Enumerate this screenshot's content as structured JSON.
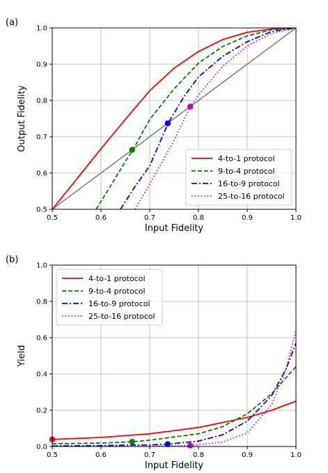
{
  "chart_data": [
    {
      "panel_label": "(a)",
      "type": "line",
      "xlabel": "Input Fidelity",
      "ylabel": "Output Fidelity",
      "xlim": [
        0.5,
        1.0
      ],
      "ylim": [
        0.5,
        1.0
      ],
      "xticks": [
        "0.5",
        "0.6",
        "0.7",
        "0.8",
        "0.9",
        "1.0"
      ],
      "yticks": [
        "0.5",
        "0.6",
        "0.7",
        "0.8",
        "0.9",
        "1.0"
      ],
      "grid": true,
      "legend_position": "lower-right",
      "reference_line": {
        "color": "#808080",
        "points": [
          [
            0.5,
            0.5
          ],
          [
            1.0,
            1.0
          ]
        ]
      },
      "series": [
        {
          "name": "4-to-1 protocol",
          "color": "#ff0000",
          "style": "solid",
          "points": [
            [
              0.5,
              0.5
            ],
            [
              0.55,
              0.583
            ],
            [
              0.6,
              0.667
            ],
            [
              0.65,
              0.748
            ],
            [
              0.7,
              0.827
            ],
            [
              0.75,
              0.889
            ],
            [
              0.8,
              0.935
            ],
            [
              0.85,
              0.968
            ],
            [
              0.9,
              0.988
            ],
            [
              0.95,
              0.997
            ],
            [
              1.0,
              1.0
            ]
          ],
          "marker": null
        },
        {
          "name": "9-to-4 protocol",
          "color": "#008000",
          "style": "dashed",
          "points": [
            [
              0.59,
              0.5
            ],
            [
              0.62,
              0.565
            ],
            [
              0.65,
              0.632
            ],
            [
              0.667,
              0.667
            ],
            [
              0.7,
              0.748
            ],
            [
              0.75,
              0.832
            ],
            [
              0.8,
              0.903
            ],
            [
              0.85,
              0.949
            ],
            [
              0.9,
              0.978
            ],
            [
              0.95,
              0.995
            ],
            [
              1.0,
              1.0
            ]
          ],
          "marker": [
            0.664,
            0.664
          ]
        },
        {
          "name": "16-to-9 protocol",
          "color": "#0000ff",
          "style": "dashdot",
          "points": [
            [
              0.64,
              0.5
            ],
            [
              0.67,
              0.563
            ],
            [
              0.7,
              0.62
            ],
            [
              0.738,
              0.738
            ],
            [
              0.77,
              0.81
            ],
            [
              0.8,
              0.865
            ],
            [
              0.85,
              0.922
            ],
            [
              0.9,
              0.962
            ],
            [
              0.95,
              0.99
            ],
            [
              1.0,
              1.0
            ]
          ],
          "marker": [
            0.737,
            0.737
          ]
        },
        {
          "name": "25-to-16 protocol",
          "color": "#cc00cc",
          "style": "dotted",
          "points": [
            [
              0.67,
              0.5
            ],
            [
              0.7,
              0.57
            ],
            [
              0.75,
              0.69
            ],
            [
              0.783,
              0.783
            ],
            [
              0.8,
              0.815
            ],
            [
              0.85,
              0.895
            ],
            [
              0.9,
              0.95
            ],
            [
              0.95,
              0.985
            ],
            [
              1.0,
              1.0
            ]
          ],
          "marker": [
            0.783,
            0.783
          ]
        }
      ]
    },
    {
      "panel_label": "(b)",
      "type": "line",
      "xlabel": "Input Fidelity",
      "ylabel": "Yield",
      "xlim": [
        0.5,
        1.0
      ],
      "ylim": [
        0.0,
        1.0
      ],
      "xticks": [
        "0.5",
        "0.6",
        "0.7",
        "0.8",
        "0.9",
        "1.0"
      ],
      "yticks": [
        "0.0",
        "0.2",
        "0.4",
        "0.6",
        "0.8",
        "1.0"
      ],
      "grid": true,
      "legend_position": "upper-left",
      "series": [
        {
          "name": "4-to-1 protocol",
          "color": "#ff0000",
          "style": "solid",
          "points": [
            [
              0.5,
              0.039
            ],
            [
              0.6,
              0.05
            ],
            [
              0.7,
              0.07
            ],
            [
              0.8,
              0.105
            ],
            [
              0.9,
              0.16
            ],
            [
              0.95,
              0.2
            ],
            [
              1.0,
              0.25
            ]
          ],
          "marker": [
            0.5,
            0.039
          ]
        },
        {
          "name": "9-to-4 protocol",
          "color": "#008000",
          "style": "dashed",
          "points": [
            [
              0.5,
              0.015
            ],
            [
              0.6,
              0.019
            ],
            [
              0.664,
              0.026
            ],
            [
              0.7,
              0.035
            ],
            [
              0.8,
              0.07
            ],
            [
              0.85,
              0.11
            ],
            [
              0.9,
              0.18
            ],
            [
              0.95,
              0.29
            ],
            [
              1.0,
              0.44
            ]
          ],
          "marker": [
            0.664,
            0.026
          ]
        },
        {
          "name": "16-to-9 protocol",
          "color": "#0000ff",
          "style": "dashdot",
          "points": [
            [
              0.5,
              0.003
            ],
            [
              0.6,
              0.005
            ],
            [
              0.7,
              0.009
            ],
            [
              0.737,
              0.013
            ],
            [
              0.8,
              0.03
            ],
            [
              0.85,
              0.065
            ],
            [
              0.9,
              0.14
            ],
            [
              0.95,
              0.28
            ],
            [
              0.98,
              0.43
            ],
            [
              1.0,
              0.57
            ]
          ],
          "marker": [
            0.737,
            0.013
          ]
        },
        {
          "name": "25-to-16 protocol",
          "color": "#cc00cc",
          "style": "dotted",
          "points": [
            [
              0.5,
              0.0
            ],
            [
              0.6,
              0.001
            ],
            [
              0.7,
              0.002
            ],
            [
              0.783,
              0.005
            ],
            [
              0.85,
              0.025
            ],
            [
              0.9,
              0.075
            ],
            [
              0.95,
              0.23
            ],
            [
              0.98,
              0.43
            ],
            [
              1.0,
              0.64
            ]
          ],
          "marker": [
            0.783,
            0.005
          ]
        }
      ]
    }
  ]
}
